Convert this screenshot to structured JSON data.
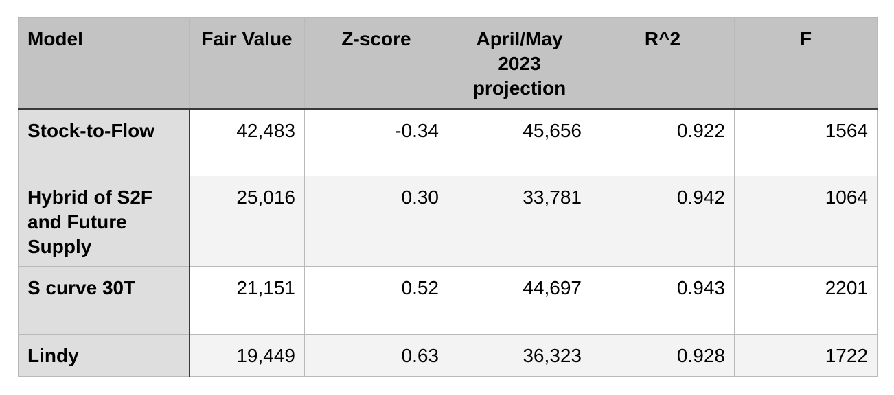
{
  "table": {
    "headers": [
      "Model",
      "Fair Value",
      "Z-score",
      "April/May 2023 projection",
      "R^2",
      "F"
    ],
    "rows": [
      [
        "Stock-to-Flow",
        "42,483",
        "-0.34",
        "45,656",
        "0.922",
        "1564"
      ],
      [
        "Hybrid of S2F and Future Supply",
        "25,016",
        "0.30",
        "33,781",
        "0.942",
        "1064"
      ],
      [
        "S curve 30T",
        "21,151",
        "0.52",
        "44,697",
        "0.943",
        "2201"
      ],
      [
        "Lindy",
        "19,449",
        "0.63",
        "36,323",
        "0.928",
        "1722"
      ]
    ]
  },
  "colors": {
    "header_bg": "#c2c3c2",
    "model_col_bg": "#dedede",
    "alt_row_bg": "#f3f3f3",
    "grid": "#b9b9b9",
    "heavy_rule": "#3a3a3a"
  }
}
